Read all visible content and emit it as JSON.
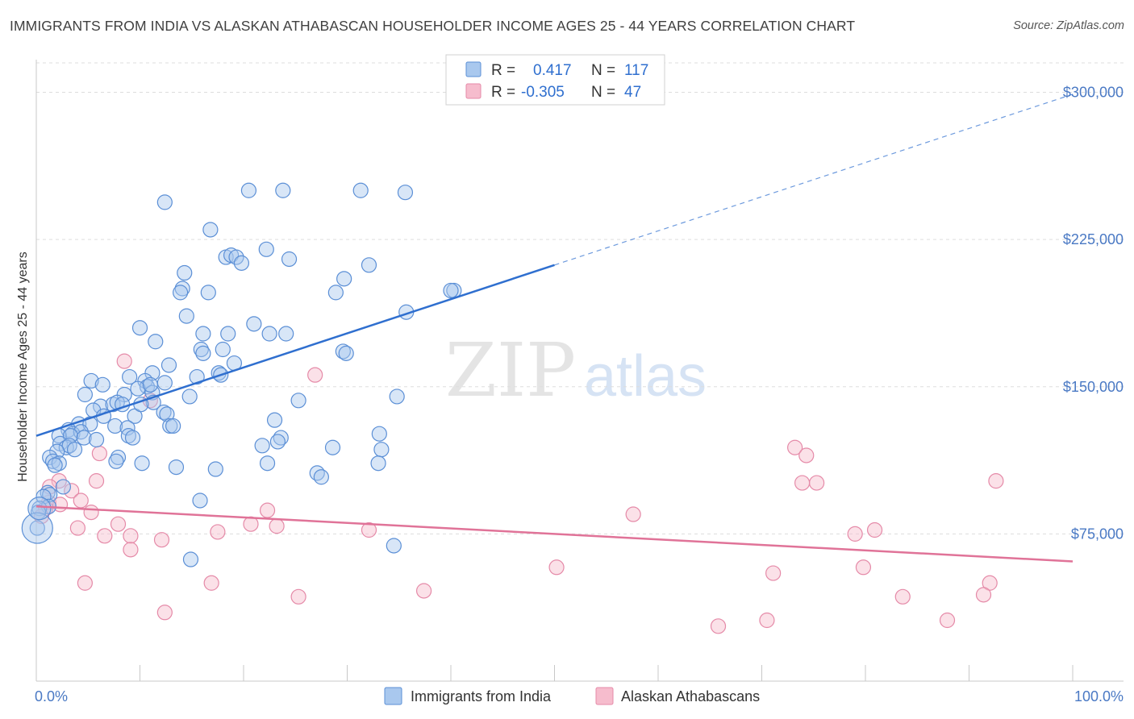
{
  "title": "IMMIGRANTS FROM INDIA VS ALASKAN ATHABASCAN HOUSEHOLDER INCOME AGES 25 - 44 YEARS CORRELATION CHART",
  "source": "Source: ZipAtlas.com",
  "watermark": {
    "zip": "ZIP",
    "atlas": "atlas"
  },
  "colors": {
    "blue_fill": "#a9c8ee",
    "blue_stroke": "#5b8fd6",
    "blue_line": "#2f6fcf",
    "pink_fill": "#f6bccd",
    "pink_stroke": "#e58aa8",
    "pink_line": "#e07398",
    "tick_text": "#4a79c4",
    "grid": "#dddddd"
  },
  "chart_data": {
    "type": "scatter",
    "title": "IMMIGRANTS FROM INDIA VS ALASKAN ATHABASCAN HOUSEHOLDER INCOME AGES 25 - 44 YEARS CORRELATION CHART",
    "xlabel": "",
    "ylabel": "Householder Income Ages 25 - 44 years",
    "xlim": [
      0,
      100
    ],
    "ylim": [
      0,
      315000
    ],
    "x_tick_labels": {
      "min": "0.0%",
      "max": "100.0%"
    },
    "y_ticks": [
      {
        "value": 75000,
        "label": "$75,000"
      },
      {
        "value": 150000,
        "label": "$150,000"
      },
      {
        "value": 225000,
        "label": "$225,000"
      },
      {
        "value": 300000,
        "label": "$300,000"
      }
    ],
    "grid": true,
    "legend_position": "top-center",
    "series": [
      {
        "name": "Immigrants from India",
        "legend_r_label": "R =",
        "r": "0.417",
        "legend_n_label": "N =",
        "n": "117",
        "trend": {
          "x0": 0,
          "y0": 125000,
          "x1": 50,
          "y1": 212000,
          "dash_to_x": 100
        },
        "points": [
          [
            12.4,
            244000
          ],
          [
            20.5,
            250000
          ],
          [
            23.8,
            250000
          ],
          [
            31.3,
            250000
          ],
          [
            35.6,
            249000
          ],
          [
            16.8,
            230000
          ],
          [
            18.3,
            216000
          ],
          [
            22.2,
            220000
          ],
          [
            18.8,
            217000
          ],
          [
            19.3,
            216000
          ],
          [
            19.8,
            213000
          ],
          [
            24.4,
            215000
          ],
          [
            32.1,
            212000
          ],
          [
            14.3,
            208000
          ],
          [
            29.7,
            205000
          ],
          [
            14.1,
            200000
          ],
          [
            13.9,
            198000
          ],
          [
            16.6,
            198000
          ],
          [
            28.9,
            198000
          ],
          [
            40.3,
            199000
          ],
          [
            35.7,
            188000
          ],
          [
            14.5,
            186000
          ],
          [
            10.0,
            180000
          ],
          [
            21.0,
            182000
          ],
          [
            16.1,
            177000
          ],
          [
            18.5,
            177000
          ],
          [
            22.5,
            177000
          ],
          [
            24.1,
            177000
          ],
          [
            11.5,
            173000
          ],
          [
            15.9,
            169000
          ],
          [
            18.0,
            169000
          ],
          [
            16.1,
            167000
          ],
          [
            29.6,
            168000
          ],
          [
            29.9,
            167000
          ],
          [
            12.8,
            161000
          ],
          [
            19.1,
            162000
          ],
          [
            11.2,
            157000
          ],
          [
            15.5,
            155000
          ],
          [
            17.6,
            157000
          ],
          [
            17.8,
            156000
          ],
          [
            5.3,
            153000
          ],
          [
            9.0,
            155000
          ],
          [
            10.5,
            153000
          ],
          [
            12.4,
            152000
          ],
          [
            6.4,
            151000
          ],
          [
            10.7,
            150000
          ],
          [
            4.7,
            146000
          ],
          [
            8.5,
            146000
          ],
          [
            11.2,
            147000
          ],
          [
            14.8,
            145000
          ],
          [
            25.3,
            143000
          ],
          [
            34.8,
            145000
          ],
          [
            11.3,
            142000
          ],
          [
            6.2,
            140000
          ],
          [
            7.4,
            141000
          ],
          [
            7.8,
            142000
          ],
          [
            8.3,
            141000
          ],
          [
            5.5,
            138000
          ],
          [
            12.3,
            137000
          ],
          [
            6.5,
            135000
          ],
          [
            9.5,
            135000
          ],
          [
            12.6,
            136000
          ],
          [
            23.0,
            133000
          ],
          [
            4.1,
            131000
          ],
          [
            5.2,
            131000
          ],
          [
            7.6,
            130000
          ],
          [
            8.8,
            129000
          ],
          [
            12.9,
            130000
          ],
          [
            13.2,
            130000
          ],
          [
            3.1,
            128000
          ],
          [
            3.5,
            126000
          ],
          [
            4.3,
            127000
          ],
          [
            2.2,
            125000
          ],
          [
            3.3,
            125000
          ],
          [
            4.6,
            124000
          ],
          [
            8.9,
            125000
          ],
          [
            9.3,
            124000
          ],
          [
            23.6,
            124000
          ],
          [
            33.1,
            126000
          ],
          [
            2.3,
            121000
          ],
          [
            2.9,
            119000
          ],
          [
            3.2,
            120000
          ],
          [
            21.8,
            120000
          ],
          [
            28.6,
            119000
          ],
          [
            33.3,
            118000
          ],
          [
            2.0,
            117000
          ],
          [
            7.9,
            114000
          ],
          [
            1.3,
            114000
          ],
          [
            1.6,
            112000
          ],
          [
            2.2,
            111000
          ],
          [
            1.8,
            110000
          ],
          [
            7.7,
            112000
          ],
          [
            10.2,
            111000
          ],
          [
            22.3,
            111000
          ],
          [
            33.0,
            111000
          ],
          [
            13.5,
            109000
          ],
          [
            17.3,
            108000
          ],
          [
            27.1,
            106000
          ],
          [
            27.5,
            104000
          ],
          [
            1.1,
            96000
          ],
          [
            1.3,
            95000
          ],
          [
            0.7,
            94000
          ],
          [
            1.2,
            89000
          ],
          [
            15.8,
            92000
          ],
          [
            0.3,
            88000
          ],
          [
            0.2,
            86000
          ],
          [
            0.1,
            78000
          ],
          [
            34.5,
            69000
          ],
          [
            14.9,
            62000
          ],
          [
            40.0,
            199000
          ],
          [
            9.8,
            149000
          ],
          [
            3.7,
            118000
          ],
          [
            5.8,
            123000
          ],
          [
            11.0,
            151000
          ],
          [
            23.3,
            122000
          ],
          [
            2.6,
            99000
          ],
          [
            10.1,
            141000
          ]
        ]
      },
      {
        "name": "Alaskan Athabascans",
        "legend_r_label": "R =",
        "r": "-0.305",
        "legend_n_label": "N =",
        "n": "47",
        "trend": {
          "x0": 0,
          "y0": 89000,
          "x1": 100,
          "y1": 61000
        },
        "points": [
          [
            8.5,
            163000
          ],
          [
            26.9,
            156000
          ],
          [
            11.0,
            143000
          ],
          [
            6.1,
            116000
          ],
          [
            2.2,
            102000
          ],
          [
            5.8,
            102000
          ],
          [
            1.3,
            99000
          ],
          [
            3.4,
            97000
          ],
          [
            4.3,
            92000
          ],
          [
            1.2,
            91000
          ],
          [
            2.3,
            90000
          ],
          [
            0.9,
            88000
          ],
          [
            5.3,
            86000
          ],
          [
            22.3,
            87000
          ],
          [
            0.5,
            84000
          ],
          [
            7.9,
            80000
          ],
          [
            20.7,
            80000
          ],
          [
            23.2,
            79000
          ],
          [
            4.0,
            78000
          ],
          [
            17.5,
            76000
          ],
          [
            32.1,
            77000
          ],
          [
            6.6,
            74000
          ],
          [
            9.1,
            74000
          ],
          [
            12.1,
            72000
          ],
          [
            9.1,
            67000
          ],
          [
            57.6,
            85000
          ],
          [
            73.2,
            119000
          ],
          [
            74.3,
            115000
          ],
          [
            73.9,
            101000
          ],
          [
            75.3,
            101000
          ],
          [
            92.6,
            102000
          ],
          [
            79.0,
            75000
          ],
          [
            80.9,
            77000
          ],
          [
            50.2,
            58000
          ],
          [
            71.1,
            55000
          ],
          [
            79.8,
            58000
          ],
          [
            4.7,
            50000
          ],
          [
            16.9,
            50000
          ],
          [
            92.0,
            50000
          ],
          [
            37.4,
            46000
          ],
          [
            25.3,
            43000
          ],
          [
            83.6,
            43000
          ],
          [
            91.4,
            44000
          ],
          [
            12.4,
            35000
          ],
          [
            70.5,
            31000
          ],
          [
            87.9,
            31000
          ],
          [
            65.8,
            28000
          ]
        ]
      }
    ]
  }
}
